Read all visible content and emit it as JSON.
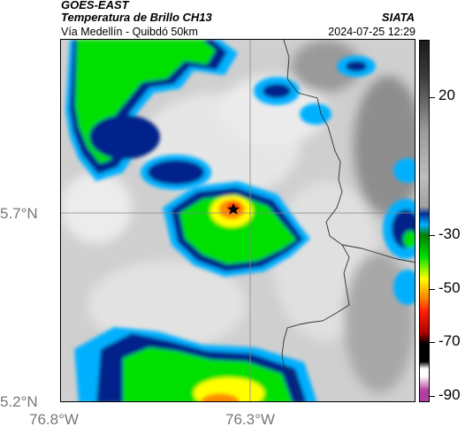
{
  "header": {
    "satellite": "GOES-EAST",
    "product": "Temperatura de Brillo CH13",
    "organization": "SIATA",
    "route": "Vía Medellín - Quibdó 50km",
    "datetime": "2024-07-25 12:29"
  },
  "axes": {
    "lat_labels": [
      "5.7°N",
      "5.2°N"
    ],
    "lon_labels": [
      "76.8°W",
      "76.3°W"
    ]
  },
  "colorbar": {
    "ticks": [
      {
        "label": "20",
        "value": 20
      },
      {
        "label": "-30",
        "value": -30
      },
      {
        "label": "-50",
        "value": -50
      },
      {
        "label": "-70",
        "value": -70
      },
      {
        "label": "-90",
        "value": -90
      }
    ],
    "range": [
      -95,
      45
    ],
    "colors": [
      "#b040a0",
      "#d8a0d0",
      "#ffffff",
      "#000000",
      "#b00000",
      "#ff2000",
      "#ff8c00",
      "#ffff00",
      "#00e000",
      "#008000",
      "#00b0ff",
      "#003090",
      "#3c3c3c",
      "#1a1a1a"
    ]
  },
  "marker": {
    "icon": "star-icon"
  },
  "colors": {
    "cloud_free": "#d4d4d4",
    "cloud_light": "#e8e8e8",
    "warm_dark": "#8a8a8a",
    "cold_blue": "#00b0ff",
    "deep_blue": "#00208a",
    "green": "#00e000",
    "yellow": "#ffff00",
    "orange": "#ff8c00",
    "border": "#303030",
    "grid": "#888888"
  }
}
